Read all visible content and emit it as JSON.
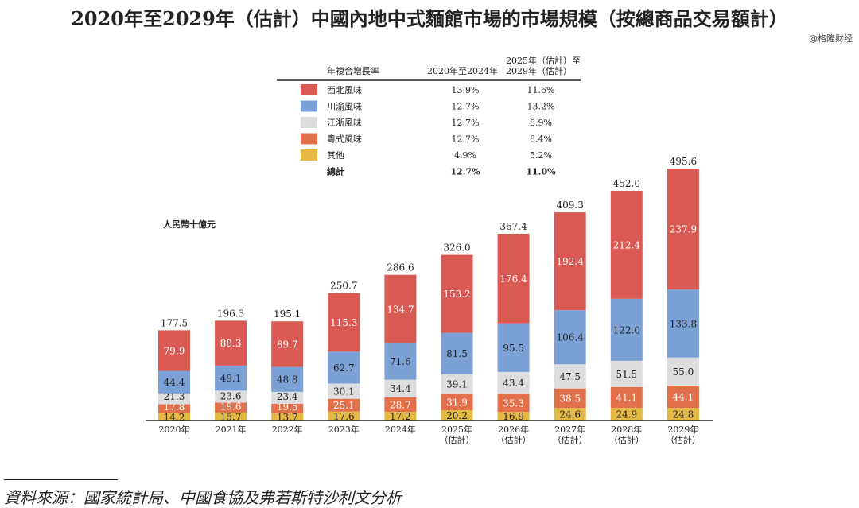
{
  "title": "2020年至2029年（估計）中國內地中式麵館市場的市場規模（按總商品交易額計）",
  "watermark": "@格隆财经",
  "source": "資料來源：國家統計局、中國食協及弗若斯特沙利文分析",
  "chart_data": {
    "type": "bar",
    "stacked": true,
    "title": "2020年至2029年（估計）中國內地中式麵館市場的市場規模（按總商品交易額計）",
    "ylabel": "人民幣十億元",
    "xlabel": "",
    "categories": [
      [
        "2020年"
      ],
      [
        "2021年"
      ],
      [
        "2022年"
      ],
      [
        "2023年"
      ],
      [
        "2024年"
      ],
      [
        "2025年",
        "（估計）"
      ],
      [
        "2026年",
        "（估計）"
      ],
      [
        "2027年",
        "（估計）"
      ],
      [
        "2028年",
        "（估計）"
      ],
      [
        "2029年",
        "（估計）"
      ]
    ],
    "totals": [
      "177.5",
      "196.3",
      "195.1",
      "250.7",
      "286.6",
      "326.0",
      "367.4",
      "409.3",
      "452.0",
      "495.6"
    ],
    "ylim": [
      0,
      500
    ],
    "series": [
      {
        "name": "其他",
        "color": "#e3b843",
        "label_color": "#222",
        "values": [
          14.2,
          15.7,
          13.7,
          17.6,
          17.2,
          20.2,
          16.9,
          24.6,
          24.9,
          24.8
        ]
      },
      {
        "name": "粵式風味",
        "color": "#e2704b",
        "label_color": "#fff",
        "values": [
          17.8,
          19.6,
          19.5,
          25.1,
          28.7,
          31.9,
          35.3,
          38.5,
          41.1,
          44.1
        ]
      },
      {
        "name": "江浙風味",
        "color": "#dddddf",
        "label_color": "#222",
        "values": [
          21.3,
          23.6,
          23.4,
          30.1,
          34.4,
          39.1,
          43.4,
          47.5,
          51.5,
          55.0
        ]
      },
      {
        "name": "川渝風味",
        "color": "#7aa0d6",
        "label_color": "#222",
        "values": [
          44.4,
          49.1,
          48.8,
          62.7,
          71.6,
          81.5,
          95.5,
          106.4,
          122.0,
          133.8
        ]
      },
      {
        "name": "西北風味",
        "color": "#d95a53",
        "label_color": "#fff",
        "values": [
          79.9,
          88.3,
          89.7,
          115.3,
          134.7,
          153.2,
          176.4,
          192.4,
          212.4,
          237.9
        ]
      }
    ],
    "legend": {
      "placement": "top-center",
      "header": "年複合增長率",
      "col1_header": "2020年至2024年",
      "col2_header": [
        "2025年（估計）至",
        "2029年（估計）"
      ],
      "rows": [
        {
          "name": "西北風味",
          "color": "#d95a53",
          "cagr1": "13.9%",
          "cagr2": "11.6%"
        },
        {
          "name": "川渝風味",
          "color": "#7aa0d6",
          "cagr1": "12.7%",
          "cagr2": "13.2%"
        },
        {
          "name": "江浙風味",
          "color": "#dddddf",
          "cagr1": "12.7%",
          "cagr2": "8.9%"
        },
        {
          "name": "粵式風味",
          "color": "#e2704b",
          "cagr1": "12.7%",
          "cagr2": "8.4%"
        },
        {
          "name": "其他",
          "color": "#e3b843",
          "cagr1": "4.9%",
          "cagr2": "5.2%"
        },
        {
          "name": "總計",
          "color": null,
          "cagr1": "12.7%",
          "cagr2": "11.0%",
          "bold": true
        }
      ]
    }
  }
}
